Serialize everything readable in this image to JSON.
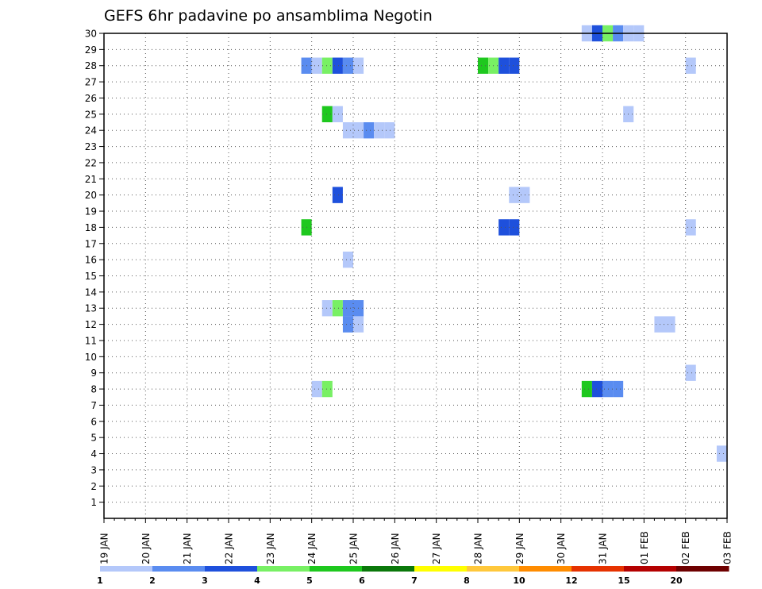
{
  "chart_data": {
    "type": "heatmap",
    "title": "GEFS 6hr padavine po ansamblima Negotin",
    "xlabel": "",
    "ylabel": "",
    "x_range": [
      "19 JAN",
      "03 FEB"
    ],
    "x_ticks": [
      "19 JAN",
      "20 JAN",
      "21 JAN",
      "22 JAN",
      "23 JAN",
      "24 JAN",
      "25 JAN",
      "26 JAN",
      "27 JAN",
      "28 JAN",
      "29 JAN",
      "30 JAN",
      "31 JAN",
      "01 FEB",
      "02 FEB",
      "03 FEB"
    ],
    "y_range": [
      0,
      30
    ],
    "y_ticks": [
      1,
      2,
      3,
      4,
      5,
      6,
      7,
      8,
      9,
      10,
      11,
      12,
      13,
      14,
      15,
      16,
      17,
      18,
      19,
      20,
      21,
      22,
      23,
      24,
      25,
      26,
      27,
      28,
      29,
      30
    ],
    "grid": true,
    "time_step_hours": 6,
    "colorbar": {
      "labels": [
        "1",
        "2",
        "3",
        "4",
        "5",
        "6",
        "7",
        "8",
        "10",
        "12",
        "15",
        "20"
      ],
      "colors": [
        "#b4c8fa",
        "#5a8cf0",
        "#1e50dc",
        "#78f064",
        "#1ec81e",
        "#0a780a",
        "#ffff00",
        "#ffc83c",
        "#ff8c00",
        "#e63200",
        "#b40000",
        "#6e0000"
      ]
    },
    "cells": [
      {
        "member": 30,
        "date": "30 JAN 12Z",
        "value": 1
      },
      {
        "member": 30,
        "date": "30 JAN 18Z",
        "value": 3
      },
      {
        "member": 30,
        "date": "31 JAN 00Z",
        "value": 4
      },
      {
        "member": 30,
        "date": "31 JAN 06Z",
        "value": 2
      },
      {
        "member": 30,
        "date": "31 JAN 12Z",
        "value": 1
      },
      {
        "member": 30,
        "date": "31 JAN 18Z",
        "value": 1
      },
      {
        "member": 28,
        "date": "23 JAN 18Z",
        "value": 2
      },
      {
        "member": 28,
        "date": "24 JAN 00Z",
        "value": 1
      },
      {
        "member": 28,
        "date": "24 JAN 06Z",
        "value": 4
      },
      {
        "member": 28,
        "date": "24 JAN 12Z",
        "value": 3
      },
      {
        "member": 28,
        "date": "24 JAN 18Z",
        "value": 2
      },
      {
        "member": 28,
        "date": "25 JAN 00Z",
        "value": 1
      },
      {
        "member": 28,
        "date": "28 JAN 00Z",
        "value": 5
      },
      {
        "member": 28,
        "date": "28 JAN 06Z",
        "value": 4
      },
      {
        "member": 28,
        "date": "28 JAN 12Z",
        "value": 3
      },
      {
        "member": 28,
        "date": "28 JAN 18Z",
        "value": 3
      },
      {
        "member": 28,
        "date": "02 FEB 00Z",
        "value": 1
      },
      {
        "member": 25,
        "date": "24 JAN 06Z",
        "value": 5
      },
      {
        "member": 25,
        "date": "24 JAN 12Z",
        "value": 1
      },
      {
        "member": 25,
        "date": "31 JAN 12Z",
        "value": 1
      },
      {
        "member": 24,
        "date": "24 JAN 18Z",
        "value": 1
      },
      {
        "member": 24,
        "date": "25 JAN 00Z",
        "value": 1
      },
      {
        "member": 24,
        "date": "25 JAN 06Z",
        "value": 2
      },
      {
        "member": 24,
        "date": "25 JAN 12Z",
        "value": 1
      },
      {
        "member": 24,
        "date": "25 JAN 18Z",
        "value": 1
      },
      {
        "member": 20,
        "date": "24 JAN 12Z",
        "value": 3
      },
      {
        "member": 20,
        "date": "28 JAN 18Z",
        "value": 1
      },
      {
        "member": 20,
        "date": "29 JAN 00Z",
        "value": 1
      },
      {
        "member": 18,
        "date": "23 JAN 18Z",
        "value": 5
      },
      {
        "member": 18,
        "date": "28 JAN 12Z",
        "value": 3
      },
      {
        "member": 18,
        "date": "28 JAN 18Z",
        "value": 3
      },
      {
        "member": 18,
        "date": "02 FEB 00Z",
        "value": 1
      },
      {
        "member": 16,
        "date": "24 JAN 18Z",
        "value": 1
      },
      {
        "member": 13,
        "date": "24 JAN 06Z",
        "value": 1
      },
      {
        "member": 13,
        "date": "24 JAN 12Z",
        "value": 4
      },
      {
        "member": 13,
        "date": "24 JAN 18Z",
        "value": 2
      },
      {
        "member": 13,
        "date": "25 JAN 00Z",
        "value": 2
      },
      {
        "member": 12,
        "date": "24 JAN 18Z",
        "value": 2
      },
      {
        "member": 12,
        "date": "25 JAN 00Z",
        "value": 1
      },
      {
        "member": 12,
        "date": "01 FEB 06Z",
        "value": 1
      },
      {
        "member": 12,
        "date": "01 FEB 12Z",
        "value": 1
      },
      {
        "member": 9,
        "date": "02 FEB 00Z",
        "value": 1
      },
      {
        "member": 8,
        "date": "24 JAN 00Z",
        "value": 1
      },
      {
        "member": 8,
        "date": "24 JAN 06Z",
        "value": 4
      },
      {
        "member": 8,
        "date": "30 JAN 12Z",
        "value": 5
      },
      {
        "member": 8,
        "date": "30 JAN 18Z",
        "value": 3
      },
      {
        "member": 8,
        "date": "31 JAN 00Z",
        "value": 2
      },
      {
        "member": 8,
        "date": "31 JAN 06Z",
        "value": 2
      },
      {
        "member": 4,
        "date": "02 FEB 18Z",
        "value": 1
      }
    ]
  }
}
